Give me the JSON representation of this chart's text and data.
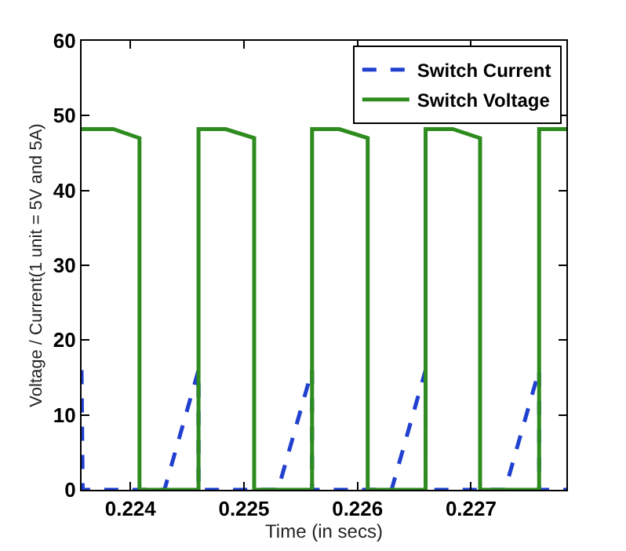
{
  "chart_data": {
    "type": "line",
    "xlabel": "Time (in secs)",
    "ylabel": "Voltage / Current(1 unit = 5V and 5A)",
    "xlim": [
      0.22357,
      0.22784
    ],
    "xticks": [
      0.224,
      0.225,
      0.226,
      0.227
    ],
    "ylim": [
      0,
      60
    ],
    "yticks": [
      0,
      10,
      20,
      30,
      40,
      50,
      60
    ],
    "grid": false,
    "legend": "top right",
    "marker": "none",
    "series": [
      {
        "name": "Switch Current",
        "color": "#2040d0",
        "line_style": "dashed",
        "x": [
          0.22357,
          0.22358,
          0.2243,
          0.2246,
          0.2246,
          0.2253,
          0.2256,
          0.2256,
          0.2263,
          0.2266,
          0.2266,
          0.2273,
          0.2276,
          0.2276,
          0.22784
        ],
        "values": [
          16,
          0,
          0,
          16,
          0,
          0,
          16,
          0,
          0,
          16,
          0,
          0,
          16,
          0,
          0
        ]
      },
      {
        "name": "Switch Voltage",
        "color": "#2e8b1e",
        "line_style": "solid",
        "x": [
          0.22357,
          0.22385,
          0.22408,
          0.22408,
          0.2246,
          0.2246,
          0.22484,
          0.22509,
          0.22509,
          0.2256,
          0.2256,
          0.22584,
          0.22609,
          0.22609,
          0.2266,
          0.2266,
          0.22684,
          0.22708,
          0.22708,
          0.2276,
          0.2276,
          0.22784
        ],
        "values": [
          48.2,
          48.2,
          47,
          0,
          0,
          48.2,
          48.2,
          47,
          0,
          0,
          48.2,
          48.2,
          47,
          0,
          0,
          48.2,
          48.2,
          47,
          0,
          0,
          48.2,
          48.2
        ]
      }
    ]
  }
}
